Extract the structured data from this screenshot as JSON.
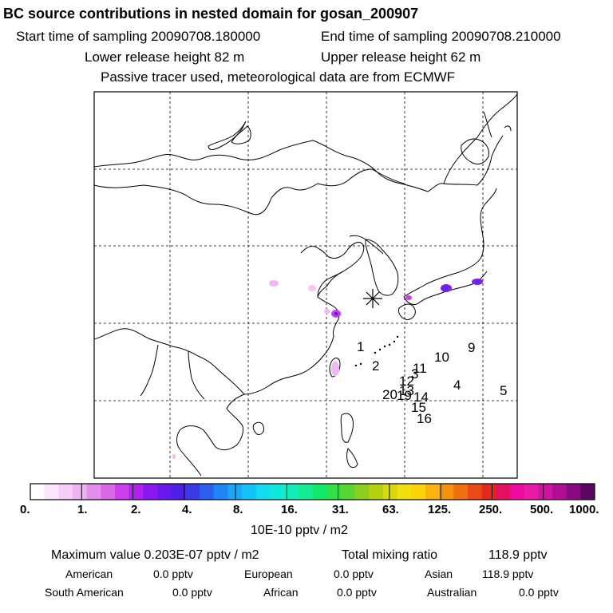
{
  "header": {
    "title": "BC  source contributions in nested domain for gosan_200907",
    "start_label": "Start time of sampling 20090708.180000",
    "end_label": "End time of sampling 20090708.210000",
    "lower_label": "Lower release height   82 m",
    "upper_label": "Upper release height   62 m",
    "tracer_note": "Passive tracer used, meteorological data are from ECMWF"
  },
  "map": {
    "receptor_marker": "star-marker",
    "trajectory_labels": [
      "1",
      "2",
      "3",
      "4",
      "5",
      "9",
      "10",
      "11",
      "12",
      "13",
      "14",
      "15",
      "16",
      "20",
      "19"
    ]
  },
  "colorbar": {
    "colors": [
      "#ffffff",
      "#fbe6fb",
      "#f5cdf6",
      "#eeb3f0",
      "#e58fec",
      "#da69ea",
      "#ca3eeb",
      "#b020ee",
      "#8a18ee",
      "#6a19ec",
      "#4d20e8",
      "#3a3ae6",
      "#2c5ef0",
      "#1e86f4",
      "#19a7f6",
      "#14c3f6",
      "#12dcef",
      "#10e9d9",
      "#12ecb8",
      "#14eb94",
      "#12e86a",
      "#30e048",
      "#5ad630",
      "#8ccf1c",
      "#b6d012",
      "#d8d80e",
      "#f0e00e",
      "#fbd20c",
      "#f8b40c",
      "#f4940e",
      "#f07010",
      "#ea4a14",
      "#e6281c",
      "#e61062",
      "#ee0aa0",
      "#ea1aa8",
      "#d012a0",
      "#b00c96",
      "#8a0a82",
      "#5c0664"
    ],
    "tick_labels": [
      "0.",
      "1.",
      "2.",
      "4.",
      "8.",
      "16.",
      "31.",
      "63.",
      "125.",
      "250.",
      "500.",
      "1000."
    ],
    "unit": "10E-10 pptv / m2"
  },
  "summary": {
    "max_label": "Maximum value  0.203E-07 pptv / m2",
    "total_label": "Total mixing ratio",
    "total_value": "118.9 pptv",
    "american_label": "American",
    "american_value": "0.0 pptv",
    "european_label": "European",
    "european_value": "0.0 pptv",
    "asian_label": "Asian",
    "asian_value": "118.9 pptv",
    "south_american_label": "South American",
    "south_american_value": "0.0 pptv",
    "african_label": "African",
    "african_value": "0.0 pptv",
    "australian_label": "Australian",
    "australian_value": "0.0 pptv"
  }
}
